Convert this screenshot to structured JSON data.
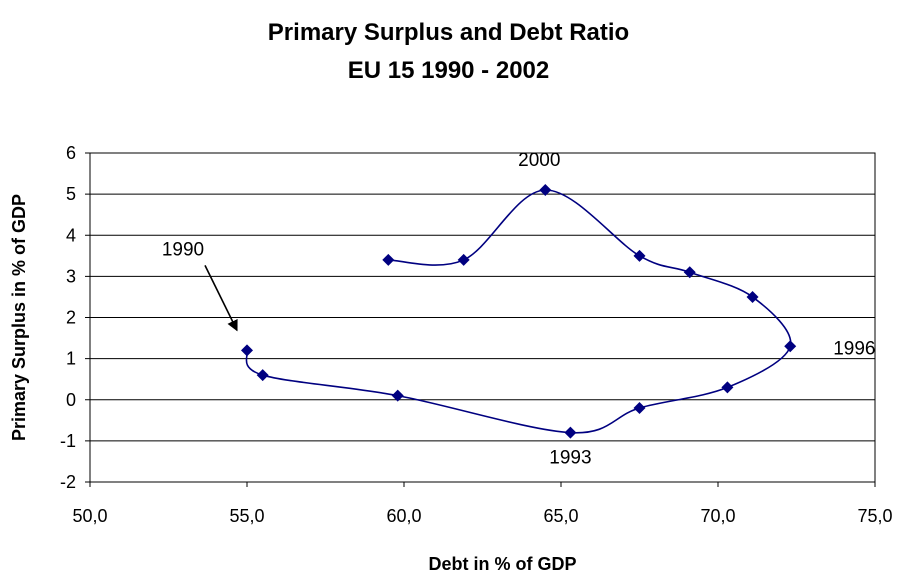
{
  "chart_data": {
    "type": "scatter",
    "title": "Primary Surplus and Debt Ratio",
    "subtitle": "EU 15 1990 - 2002",
    "xlabel": "Debt in % of GDP",
    "ylabel": "Primary Surplus in % of GDP",
    "xlim": [
      50,
      75
    ],
    "ylim": [
      -2,
      6
    ],
    "xticks": [
      "50,0",
      "55,0",
      "60,0",
      "65,0",
      "70,0",
      "75,0"
    ],
    "yticks": [
      "-2",
      "-1",
      "0",
      "1",
      "2",
      "3",
      "4",
      "5",
      "6"
    ],
    "grid": true,
    "legend": "none",
    "series_color": "#000080",
    "points": [
      {
        "x": 55.0,
        "y": 1.2
      },
      {
        "x": 55.5,
        "y": 0.6
      },
      {
        "x": 59.8,
        "y": 0.1
      },
      {
        "x": 65.3,
        "y": -0.8
      },
      {
        "x": 67.5,
        "y": -0.2
      },
      {
        "x": 70.3,
        "y": 0.3
      },
      {
        "x": 72.3,
        "y": 1.3
      },
      {
        "x": 71.1,
        "y": 2.5
      },
      {
        "x": 69.1,
        "y": 3.1
      },
      {
        "x": 67.5,
        "y": 3.5
      },
      {
        "x": 64.5,
        "y": 5.1
      },
      {
        "x": 61.9,
        "y": 3.4
      },
      {
        "x": 59.5,
        "y": 3.4
      }
    ],
    "annotations": [
      {
        "text": "1990",
        "x": 55.0,
        "y": 1.2,
        "arrow": true
      },
      {
        "text": "1993",
        "x": 65.3,
        "y": -0.8
      },
      {
        "text": "1996",
        "x": 72.3,
        "y": 1.3
      },
      {
        "text": "2000",
        "x": 64.5,
        "y": 5.1
      }
    ]
  }
}
